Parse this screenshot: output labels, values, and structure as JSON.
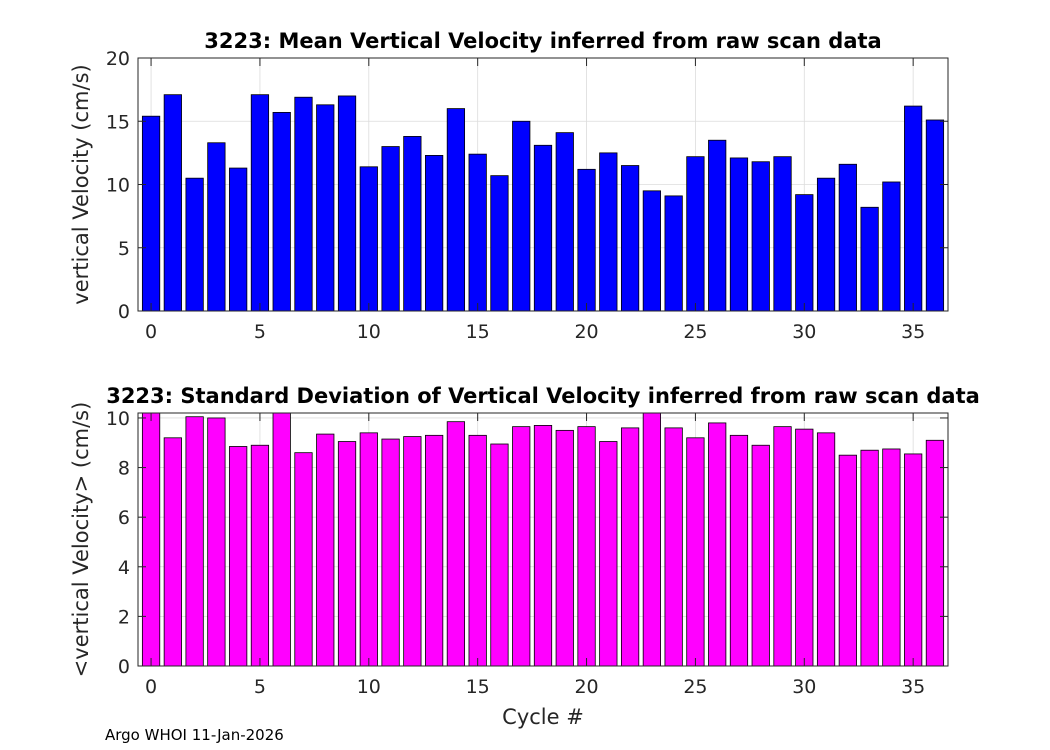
{
  "footer": {
    "note": "Argo WHOI 11-Jan-2026"
  },
  "chart_data": [
    {
      "type": "bar",
      "title": "3223: Mean Vertical Velocity inferred from raw scan data",
      "xlabel": "",
      "ylabel": "vertical Velocity (cm/s)",
      "x": [
        0,
        1,
        2,
        3,
        4,
        5,
        6,
        7,
        8,
        9,
        10,
        11,
        12,
        13,
        14,
        15,
        16,
        17,
        18,
        19,
        20,
        21,
        22,
        23,
        24,
        25,
        26,
        27,
        28,
        29,
        30,
        31,
        32,
        33,
        34,
        35,
        36
      ],
      "values": [
        15.4,
        17.1,
        10.5,
        13.3,
        11.3,
        17.1,
        15.7,
        16.9,
        16.3,
        17.0,
        11.4,
        13.0,
        13.8,
        12.3,
        16.0,
        12.4,
        10.7,
        15.0,
        13.1,
        14.1,
        11.2,
        12.5,
        11.5,
        9.5,
        9.1,
        12.2,
        13.5,
        12.1,
        11.8,
        12.2,
        9.2,
        10.5,
        11.6,
        8.2,
        10.2,
        16.2,
        15.1
      ],
      "color": "#0000ff",
      "xlim": [
        -0.6,
        36.6
      ],
      "ylim": [
        0,
        20
      ],
      "xticks": [
        0,
        5,
        10,
        15,
        20,
        25,
        30,
        35
      ],
      "yticks": [
        0,
        5,
        10,
        15,
        20
      ],
      "grid": true
    },
    {
      "type": "bar",
      "title": "3223: Standard Deviation of Vertical Velocity inferred from raw scan data",
      "xlabel": "Cycle #",
      "ylabel": "<vertical Velocity> (cm/s)",
      "x": [
        0,
        1,
        2,
        3,
        4,
        5,
        6,
        7,
        8,
        9,
        10,
        11,
        12,
        13,
        14,
        15,
        16,
        17,
        18,
        19,
        20,
        21,
        22,
        23,
        24,
        25,
        26,
        27,
        28,
        29,
        30,
        31,
        32,
        33,
        34,
        35,
        36
      ],
      "values": [
        10.2,
        9.2,
        10.05,
        10.0,
        8.85,
        8.9,
        10.2,
        8.6,
        9.35,
        9.05,
        9.4,
        9.15,
        9.25,
        9.3,
        9.85,
        9.3,
        8.95,
        9.65,
        9.7,
        9.5,
        9.65,
        9.05,
        9.6,
        10.2,
        9.6,
        9.2,
        9.8,
        9.3,
        8.9,
        9.65,
        9.55,
        9.4,
        8.5,
        8.7,
        8.75,
        8.55,
        9.1
      ],
      "color": "#ff00ff",
      "xlim": [
        -0.6,
        36.6
      ],
      "ylim": [
        0,
        10.2
      ],
      "xticks": [
        0,
        5,
        10,
        15,
        20,
        25,
        30,
        35
      ],
      "yticks": [
        0,
        2,
        4,
        6,
        8,
        10
      ],
      "grid": true
    }
  ]
}
